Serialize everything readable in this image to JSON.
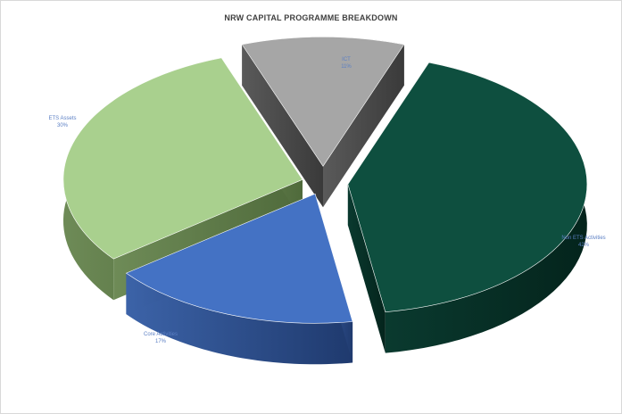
{
  "chart_data": {
    "type": "pie",
    "title": "NRW CAPITAL PROGRAMME BREAKDOWN",
    "categories": [
      "ICT",
      "Non ETS Activities",
      "Core Activities",
      "ETS Assets"
    ],
    "values": [
      11,
      42,
      17,
      30
    ],
    "labels": [
      "11%",
      "42%",
      "17%",
      "30%"
    ],
    "colors": [
      "#a6a6a6",
      "#0e4f3f",
      "#4472c4",
      "#a9d08e"
    ],
    "style": "3d-exploded"
  }
}
